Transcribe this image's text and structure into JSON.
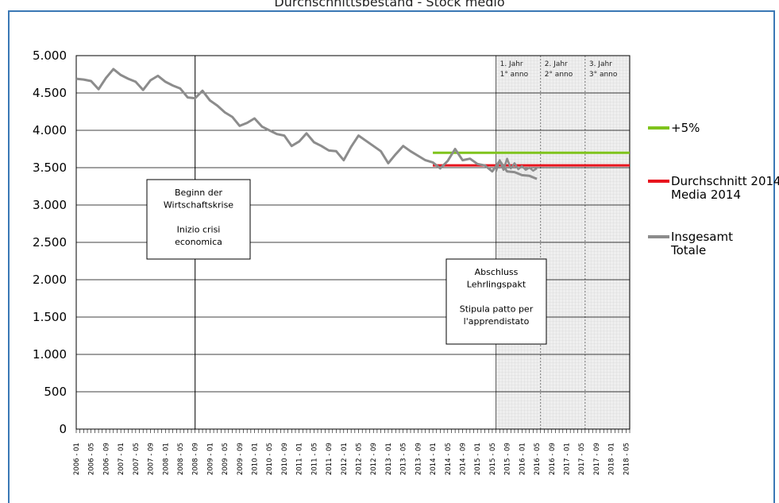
{
  "title": "Durchschnittsbestand - Stock medio",
  "chart_data": {
    "type": "line",
    "ylim": [
      0,
      5000
    ],
    "yticks": [
      0,
      500,
      1000,
      1500,
      2000,
      2500,
      3000,
      3500,
      4000,
      4500,
      5000
    ],
    "ytick_labels": [
      "0",
      "500",
      "1.000",
      "1.500",
      "2.000",
      "2.500",
      "3.000",
      "3.500",
      "4.000",
      "4.500",
      "5.000"
    ],
    "x_labels": [
      "2006 - 01",
      "2006 - 05",
      "2006 - 09",
      "2007 - 01",
      "2007 - 05",
      "2007 - 09",
      "2008 - 01",
      "2008 - 05",
      "2008 - 09",
      "2009 - 01",
      "2009 - 05",
      "2009 - 09",
      "2010 - 01",
      "2010 - 05",
      "2010 - 09",
      "2011 - 01",
      "2011 - 05",
      "2011 - 09",
      "2012 - 01",
      "2012 - 05",
      "2012 - 09",
      "2013 - 01",
      "2013 - 05",
      "2013 - 09",
      "2014 - 01",
      "2014 - 05",
      "2014 - 09",
      "2015 - 01",
      "2015 - 05",
      "2015 - 09",
      "2016 - 01",
      "2016 - 05",
      "2016 - 09",
      "2017 - 01",
      "2017 - 05",
      "2017 - 09",
      "2018 - 01",
      "2018 - 05"
    ],
    "series": [
      {
        "name": "Insgesamt / Totale",
        "color": "#8c8c8c",
        "x": [
          "2006-01",
          "2006-03",
          "2006-05",
          "2006-07",
          "2006-09",
          "2006-11",
          "2007-01",
          "2007-03",
          "2007-05",
          "2007-07",
          "2007-09",
          "2007-11",
          "2008-01",
          "2008-03",
          "2008-05",
          "2008-07",
          "2008-09",
          "2008-11",
          "2009-01",
          "2009-03",
          "2009-05",
          "2009-07",
          "2009-09",
          "2009-11",
          "2010-01",
          "2010-03",
          "2010-05",
          "2010-07",
          "2010-09",
          "2010-11",
          "2011-01",
          "2011-03",
          "2011-05",
          "2011-07",
          "2011-09",
          "2011-11",
          "2012-01",
          "2012-03",
          "2012-05",
          "2012-07",
          "2012-09",
          "2012-11",
          "2013-01",
          "2013-03",
          "2013-05",
          "2013-07",
          "2013-09",
          "2013-11",
          "2014-01",
          "2014-03",
          "2014-05",
          "2014-07",
          "2014-09",
          "2014-11",
          "2015-01",
          "2015-03",
          "2015-05",
          "2015-07",
          "2015-09",
          "2015-11",
          "2016-01",
          "2016-03",
          "2016-05"
        ],
        "values": [
          4690,
          4680,
          4660,
          4550,
          4700,
          4820,
          4740,
          4690,
          4650,
          4540,
          4670,
          4730,
          4650,
          4600,
          4560,
          4440,
          4430,
          4530,
          4400,
          4330,
          4240,
          4180,
          4060,
          4100,
          4160,
          4050,
          4000,
          3950,
          3930,
          3790,
          3850,
          3960,
          3840,
          3790,
          3730,
          3720,
          3600,
          3780,
          3930,
          3860,
          3790,
          3720,
          3560,
          3680,
          3790,
          3720,
          3660,
          3600,
          3570,
          3490,
          3590,
          3750,
          3600,
          3620,
          3550,
          3530,
          3450,
          3590,
          3450,
          3440,
          3400,
          3390,
          3350
        ]
      }
    ],
    "forecast": {
      "name": "Insgesamt / Totale",
      "x": [
        "2015-06",
        "2015-07",
        "2015-08",
        "2015-09",
        "2015-10",
        "2015-11",
        "2015-12",
        "2016-01",
        "2016-02",
        "2016-03",
        "2016-04",
        "2016-05"
      ],
      "values": [
        3450,
        3600,
        3470,
        3620,
        3490,
        3560,
        3480,
        3520,
        3470,
        3500,
        3460,
        3490
      ]
    },
    "reference_lines": [
      {
        "name": "+5%",
        "color": "#7fc31c",
        "value": 3700,
        "from": "2014-01",
        "to": "2018-06"
      },
      {
        "name": "Durchschnitt 2014 / Media 2014",
        "color": "#e8141e",
        "value": 3530,
        "from": "2014-01",
        "to": "2018-06"
      }
    ],
    "legend": {
      "placement": "right",
      "entries": [
        {
          "label": "+5%",
          "color": "#7fc31c"
        },
        {
          "label": "Durchschnitt 2014\nMedia 2014",
          "color": "#e8141e"
        },
        {
          "label": "Insgesamt\nTotale",
          "color": "#8c8c8c"
        }
      ]
    },
    "annotations": [
      {
        "text": [
          "Beginn der",
          "Wirtschaftskrise",
          "",
          "Inizio crisi",
          "economica"
        ],
        "marker": "2008-09"
      },
      {
        "text": [
          "Abschluss",
          "Lehrlingspakt",
          "",
          "Stipula patto per",
          "l'apprendistato"
        ]
      }
    ],
    "shaded_regions": [
      {
        "label": [
          "1. Jahr",
          "1° anno"
        ],
        "from": "2015-06",
        "to": "2016-06"
      },
      {
        "label": [
          "2. Jahr",
          "2° anno"
        ],
        "from": "2016-06",
        "to": "2017-06"
      },
      {
        "label": [
          "3. Jahr",
          "3° anno"
        ],
        "from": "2017-06",
        "to": "2018-06"
      }
    ],
    "grid": "horizontal"
  }
}
